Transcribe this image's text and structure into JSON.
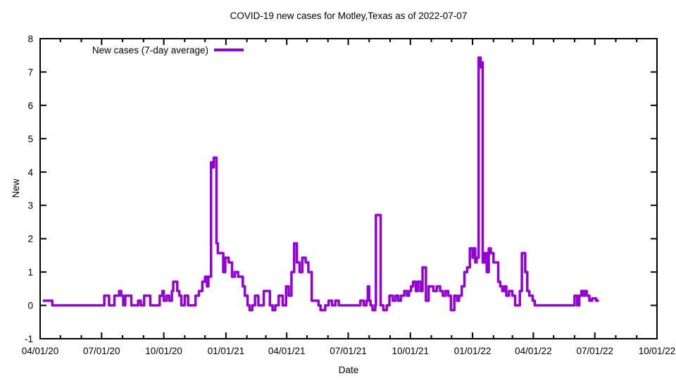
{
  "title": "COVID-19 new cases for Motley,Texas as of 2022-07-07",
  "legend": {
    "label": "New cases (7-day average)",
    "position": "top-left-inside"
  },
  "colors": {
    "line": "#9400d3",
    "axis": "#000000",
    "background": "#ffffff",
    "text": "#000000"
  },
  "chart_data": {
    "type": "line",
    "style": "steps",
    "title": "COVID-19 new cases for Motley,Texas as of 2022-07-07",
    "xlabel": "Date",
    "ylabel": "New",
    "x_range": [
      "2020-04-01",
      "2022-10-01"
    ],
    "ylim": [
      -1,
      8
    ],
    "grid": false,
    "y_ticks": [
      -1,
      0,
      1,
      2,
      3,
      4,
      5,
      6,
      7,
      8
    ],
    "x_ticks": [
      {
        "date": "2020-04-01",
        "label": "04/01/20"
      },
      {
        "date": "2020-07-01",
        "label": "07/01/20"
      },
      {
        "date": "2020-10-01",
        "label": "10/01/20"
      },
      {
        "date": "2021-01-01",
        "label": "01/01/21"
      },
      {
        "date": "2021-04-01",
        "label": "04/01/21"
      },
      {
        "date": "2021-07-01",
        "label": "07/01/21"
      },
      {
        "date": "2021-10-01",
        "label": "10/01/21"
      },
      {
        "date": "2022-01-01",
        "label": "01/01/22"
      },
      {
        "date": "2022-04-01",
        "label": "04/01/22"
      },
      {
        "date": "2022-07-01",
        "label": "07/01/22"
      },
      {
        "date": "2022-10-01",
        "label": "10/01/22"
      }
    ],
    "minor_x_ticks": "monthly",
    "series": [
      {
        "name": "New cases (7-day average)",
        "color": "#9400d3",
        "points": [
          [
            "2020-04-05",
            0.14
          ],
          [
            "2020-04-19",
            0.0
          ],
          [
            "2020-07-05",
            0.29
          ],
          [
            "2020-07-12",
            0.0
          ],
          [
            "2020-07-20",
            0.29
          ],
          [
            "2020-07-27",
            0.43
          ],
          [
            "2020-07-30",
            0.29
          ],
          [
            "2020-08-02",
            0.0
          ],
          [
            "2020-08-05",
            0.29
          ],
          [
            "2020-08-14",
            0.0
          ],
          [
            "2020-08-24",
            0.14
          ],
          [
            "2020-08-28",
            0.0
          ],
          [
            "2020-09-02",
            0.29
          ],
          [
            "2020-09-11",
            0.0
          ],
          [
            "2020-09-25",
            0.29
          ],
          [
            "2020-09-29",
            0.43
          ],
          [
            "2020-10-01",
            0.14
          ],
          [
            "2020-10-05",
            0.29
          ],
          [
            "2020-10-09",
            0.14
          ],
          [
            "2020-10-13",
            0.43
          ],
          [
            "2020-10-15",
            0.71
          ],
          [
            "2020-10-21",
            0.43
          ],
          [
            "2020-10-24",
            0.29
          ],
          [
            "2020-10-27",
            0.0
          ],
          [
            "2020-11-01",
            0.29
          ],
          [
            "2020-11-06",
            0.0
          ],
          [
            "2020-11-17",
            0.29
          ],
          [
            "2020-11-22",
            0.43
          ],
          [
            "2020-11-27",
            0.71
          ],
          [
            "2020-12-01",
            0.86
          ],
          [
            "2020-12-04",
            0.57
          ],
          [
            "2020-12-06",
            0.86
          ],
          [
            "2020-12-10",
            4.29
          ],
          [
            "2020-12-13",
            4.14
          ],
          [
            "2020-12-14",
            4.43
          ],
          [
            "2020-12-18",
            1.86
          ],
          [
            "2020-12-20",
            1.57
          ],
          [
            "2020-12-28",
            1.0
          ],
          [
            "2020-12-31",
            1.43
          ],
          [
            "2021-01-05",
            1.29
          ],
          [
            "2021-01-10",
            0.86
          ],
          [
            "2021-01-14",
            1.0
          ],
          [
            "2021-01-19",
            0.86
          ],
          [
            "2021-01-26",
            0.57
          ],
          [
            "2021-01-29",
            0.29
          ],
          [
            "2021-02-02",
            0.0
          ],
          [
            "2021-02-05",
            -0.14
          ],
          [
            "2021-02-09",
            0.0
          ],
          [
            "2021-02-13",
            0.29
          ],
          [
            "2021-02-18",
            0.0
          ],
          [
            "2021-02-26",
            0.43
          ],
          [
            "2021-03-07",
            0.0
          ],
          [
            "2021-03-11",
            -0.14
          ],
          [
            "2021-03-15",
            0.0
          ],
          [
            "2021-03-20",
            0.29
          ],
          [
            "2021-03-26",
            0.0
          ],
          [
            "2021-03-31",
            0.57
          ],
          [
            "2021-04-04",
            0.29
          ],
          [
            "2021-04-08",
            1.0
          ],
          [
            "2021-04-12",
            1.86
          ],
          [
            "2021-04-16",
            1.29
          ],
          [
            "2021-04-20",
            1.0
          ],
          [
            "2021-04-24",
            1.43
          ],
          [
            "2021-04-29",
            1.29
          ],
          [
            "2021-05-03",
            1.0
          ],
          [
            "2021-05-08",
            0.14
          ],
          [
            "2021-05-18",
            0.0
          ],
          [
            "2021-05-21",
            -0.14
          ],
          [
            "2021-05-28",
            0.0
          ],
          [
            "2021-06-02",
            0.14
          ],
          [
            "2021-06-07",
            0.0
          ],
          [
            "2021-06-12",
            0.14
          ],
          [
            "2021-06-17",
            0.0
          ],
          [
            "2021-07-19",
            0.14
          ],
          [
            "2021-07-24",
            0.0
          ],
          [
            "2021-07-28",
            0.14
          ],
          [
            "2021-07-30",
            0.57
          ],
          [
            "2021-08-01",
            0.14
          ],
          [
            "2021-08-03",
            0.0
          ],
          [
            "2021-08-06",
            -0.14
          ],
          [
            "2021-08-10",
            0.0
          ],
          [
            "2021-08-11",
            2.71
          ],
          [
            "2021-08-18",
            0.0
          ],
          [
            "2021-08-22",
            -0.14
          ],
          [
            "2021-08-27",
            0.0
          ],
          [
            "2021-08-31",
            0.29
          ],
          [
            "2021-09-05",
            0.14
          ],
          [
            "2021-09-09",
            0.29
          ],
          [
            "2021-09-13",
            0.14
          ],
          [
            "2021-09-17",
            0.29
          ],
          [
            "2021-09-22",
            0.43
          ],
          [
            "2021-09-26",
            0.29
          ],
          [
            "2021-09-29",
            0.43
          ],
          [
            "2021-10-02",
            0.57
          ],
          [
            "2021-10-05",
            0.71
          ],
          [
            "2021-10-09",
            0.43
          ],
          [
            "2021-10-12",
            0.71
          ],
          [
            "2021-10-16",
            0.43
          ],
          [
            "2021-10-19",
            1.14
          ],
          [
            "2021-10-24",
            0.14
          ],
          [
            "2021-10-28",
            0.57
          ],
          [
            "2021-11-04",
            0.43
          ],
          [
            "2021-11-09",
            0.57
          ],
          [
            "2021-11-14",
            0.43
          ],
          [
            "2021-11-18",
            0.29
          ],
          [
            "2021-11-22",
            0.43
          ],
          [
            "2021-11-26",
            0.29
          ],
          [
            "2021-11-30",
            -0.14
          ],
          [
            "2021-12-05",
            0.29
          ],
          [
            "2021-12-09",
            0.14
          ],
          [
            "2021-12-12",
            0.29
          ],
          [
            "2021-12-16",
            0.57
          ],
          [
            "2021-12-20",
            1.0
          ],
          [
            "2021-12-24",
            1.14
          ],
          [
            "2021-12-28",
            1.71
          ],
          [
            "2022-01-01",
            1.43
          ],
          [
            "2022-01-03",
            1.71
          ],
          [
            "2022-01-05",
            1.29
          ],
          [
            "2022-01-07",
            1.43
          ],
          [
            "2022-01-10",
            7.43
          ],
          [
            "2022-01-13",
            7.14
          ],
          [
            "2022-01-14",
            7.29
          ],
          [
            "2022-01-16",
            1.29
          ],
          [
            "2022-01-19",
            1.57
          ],
          [
            "2022-01-22",
            1.0
          ],
          [
            "2022-01-25",
            1.71
          ],
          [
            "2022-01-28",
            1.57
          ],
          [
            "2022-02-01",
            1.29
          ],
          [
            "2022-02-08",
            0.71
          ],
          [
            "2022-02-11",
            0.57
          ],
          [
            "2022-02-14",
            0.43
          ],
          [
            "2022-02-17",
            0.57
          ],
          [
            "2022-02-20",
            0.29
          ],
          [
            "2022-02-24",
            0.43
          ],
          [
            "2022-03-01",
            0.29
          ],
          [
            "2022-03-05",
            0.0
          ],
          [
            "2022-03-12",
            0.43
          ],
          [
            "2022-03-15",
            1.57
          ],
          [
            "2022-03-20",
            1.0
          ],
          [
            "2022-03-23",
            0.43
          ],
          [
            "2022-03-26",
            0.29
          ],
          [
            "2022-03-31",
            0.14
          ],
          [
            "2022-04-03",
            0.0
          ],
          [
            "2022-06-01",
            0.29
          ],
          [
            "2022-06-05",
            0.0
          ],
          [
            "2022-06-08",
            0.29
          ],
          [
            "2022-06-11",
            0.43
          ],
          [
            "2022-06-14",
            0.29
          ],
          [
            "2022-06-16",
            0.43
          ],
          [
            "2022-06-19",
            0.29
          ],
          [
            "2022-06-23",
            0.14
          ],
          [
            "2022-06-27",
            0.21
          ],
          [
            "2022-07-03",
            0.14
          ],
          [
            "2022-07-07",
            0.14
          ]
        ]
      }
    ]
  }
}
